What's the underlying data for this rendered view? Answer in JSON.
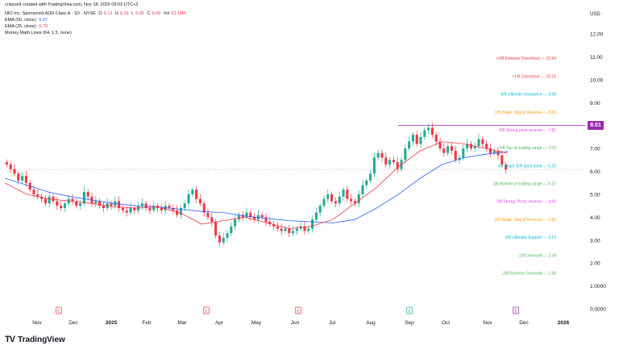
{
  "header": {
    "created": "crispus9 created with TradingView.com, Nov 18, 2025 09:03 UTC+3",
    "symbol": "NIO Inc. Sponsored ADR Class A · 1D · NYSE",
    "ohlc": [
      {
        "label": "O",
        "value": "6.13"
      },
      {
        "label": "H",
        "value": "6.29"
      },
      {
        "label": "L",
        "value": "6.02"
      },
      {
        "label": "C",
        "value": "6.08"
      },
      {
        "label": "Vol",
        "value": "53.18M"
      }
    ],
    "ema50": {
      "label": "EMA (50, close)",
      "value": "6.87"
    },
    "ema25": {
      "label": "EMA (25, close)",
      "value": "6.79"
    },
    "murrey": "Murrey Math Lines (64, 1.5, none)"
  },
  "currency": "USD",
  "price_tag": "8.01",
  "footer": {
    "logo": "TradingView",
    "logo_mark": "TV"
  },
  "colors": {
    "up": "#22ab94",
    "down": "#f23645",
    "ema50": "#2962ff",
    "ema25": "#f23645",
    "tag": "#9c27b0"
  },
  "chart_data": {
    "type": "candlestick",
    "y_axis": {
      "ticks": [
        "0.0000",
        "1.0000",
        "2.00",
        "3.00",
        "4.00",
        "5.00",
        "6.00",
        "7.00",
        "8.00",
        "9.00",
        "10.00",
        "11.00",
        "12.00"
      ]
    },
    "x_axis": {
      "ticks": [
        "Nov",
        "Dec",
        "2025",
        "Feb",
        "Mar",
        "Apr",
        "May",
        "Jun",
        "Jul",
        "Aug",
        "Sep",
        "Oct",
        "Nov",
        "Dec",
        "2026"
      ],
      "bold": [
        "2025",
        "2026"
      ]
    },
    "earnings_markers": [
      {
        "month": "Nov",
        "type": "E",
        "color": "#f23645"
      },
      {
        "month": "Mar",
        "type": "E",
        "color": "#f23645"
      },
      {
        "month": "Jun",
        "type": "E",
        "color": "#f23645"
      },
      {
        "month": "Sep",
        "type": "E",
        "color": "#22ab94"
      },
      {
        "month": "Nov",
        "type": "E",
        "color": "#9c27b0"
      }
    ],
    "murrey_lines": [
      {
        "label": "+2/8 Extreme Overshoot",
        "value": 10.94,
        "color": "#f23645"
      },
      {
        "label": "+1/8 Overshoot",
        "value": 10.16,
        "color": "#f23645"
      },
      {
        "label": "8/8 Ultimate resistance",
        "value": 9.38,
        "color": "#00bcd4"
      },
      {
        "label": "7/8 Weak, Stop & Reverse",
        "value": 8.59,
        "color": "#ff9800"
      },
      {
        "label": "6/8 Strong pivot reverse",
        "value": 7.81,
        "color": "#e040fb"
      },
      {
        "label": "5/8 Top of trading range",
        "value": 7.03,
        "color": "#4caf50"
      },
      {
        "label": "4/8 Major S/R pivot point",
        "value": 6.25,
        "color": "#00bcd4"
      },
      {
        "label": "3/8 Bottom of trading range",
        "value": 5.47,
        "color": "#4caf50"
      },
      {
        "label": "2/8 Strong, Pivot, reverse",
        "value": 4.69,
        "color": "#e040fb"
      },
      {
        "label": "1/8 Weak, Stop & Reverse",
        "value": 3.91,
        "color": "#ff9800"
      },
      {
        "label": "0/8 Ultimate Support",
        "value": 3.13,
        "color": "#00bcd4"
      },
      {
        "label": "-1/8 Oversold",
        "value": 2.34,
        "color": "#4caf50"
      },
      {
        "label": "-2/8 Extreme Oversold",
        "value": 1.56,
        "color": "#4caf50"
      }
    ],
    "candles_close": [
      6.3,
      6.1,
      5.9,
      5.6,
      5.8,
      5.5,
      5.2,
      5.0,
      4.9,
      4.8,
      4.6,
      4.9,
      4.7,
      4.5,
      4.4,
      4.6,
      4.8,
      4.7,
      4.5,
      4.6,
      5.1,
      4.9,
      4.6,
      4.7,
      4.5,
      4.4,
      4.6,
      4.5,
      4.7,
      4.4,
      4.3,
      4.2,
      4.4,
      4.3,
      4.5,
      4.6,
      4.4,
      4.3,
      4.5,
      4.4,
      4.3,
      4.5,
      4.4,
      4.3,
      4.1,
      4.4,
      4.6,
      5.0,
      5.2,
      4.8,
      4.6,
      4.2,
      4.0,
      3.8,
      3.2,
      2.9,
      3.1,
      3.3,
      3.6,
      3.9,
      4.1,
      4.0,
      4.2,
      4.0,
      3.9,
      4.1,
      4.0,
      3.8,
      3.7,
      3.6,
      3.5,
      3.4,
      3.5,
      3.3,
      3.4,
      3.5,
      3.6,
      3.4,
      3.5,
      3.9,
      4.2,
      4.5,
      4.8,
      5.0,
      4.7,
      4.6,
      4.9,
      5.2,
      4.8,
      4.7,
      4.6,
      5.0,
      5.4,
      5.6,
      5.9,
      6.6,
      6.8,
      6.6,
      6.3,
      6.5,
      6.4,
      6.1,
      6.5,
      7.0,
      7.3,
      7.6,
      7.2,
      7.5,
      7.8,
      7.9,
      7.6,
      7.3,
      7.0,
      6.8,
      7.1,
      6.9,
      6.5,
      6.6,
      7.0,
      7.2,
      7.0,
      7.1,
      7.4,
      7.2,
      7.0,
      6.8,
      6.9,
      6.7,
      6.3,
      6.08
    ],
    "ema50_points": [
      5.7,
      5.4,
      5.1,
      4.9,
      4.75,
      4.6,
      4.5,
      4.45,
      4.35,
      4.25,
      4.2,
      4.05,
      3.95,
      3.85,
      3.8,
      3.75,
      3.9,
      4.4,
      5.0,
      5.7,
      6.3,
      6.6,
      6.75,
      6.87
    ],
    "ema25_points": [
      5.5,
      5.0,
      4.8,
      4.7,
      4.6,
      4.45,
      4.4,
      4.45,
      4.2,
      3.7,
      3.85,
      4.0,
      3.75,
      3.5,
      3.6,
      3.9,
      4.6,
      5.3,
      6.2,
      6.9,
      7.3,
      7.2,
      7.0,
      6.79
    ],
    "last_close_line": 6.08,
    "resistance_line": 8.01
  }
}
